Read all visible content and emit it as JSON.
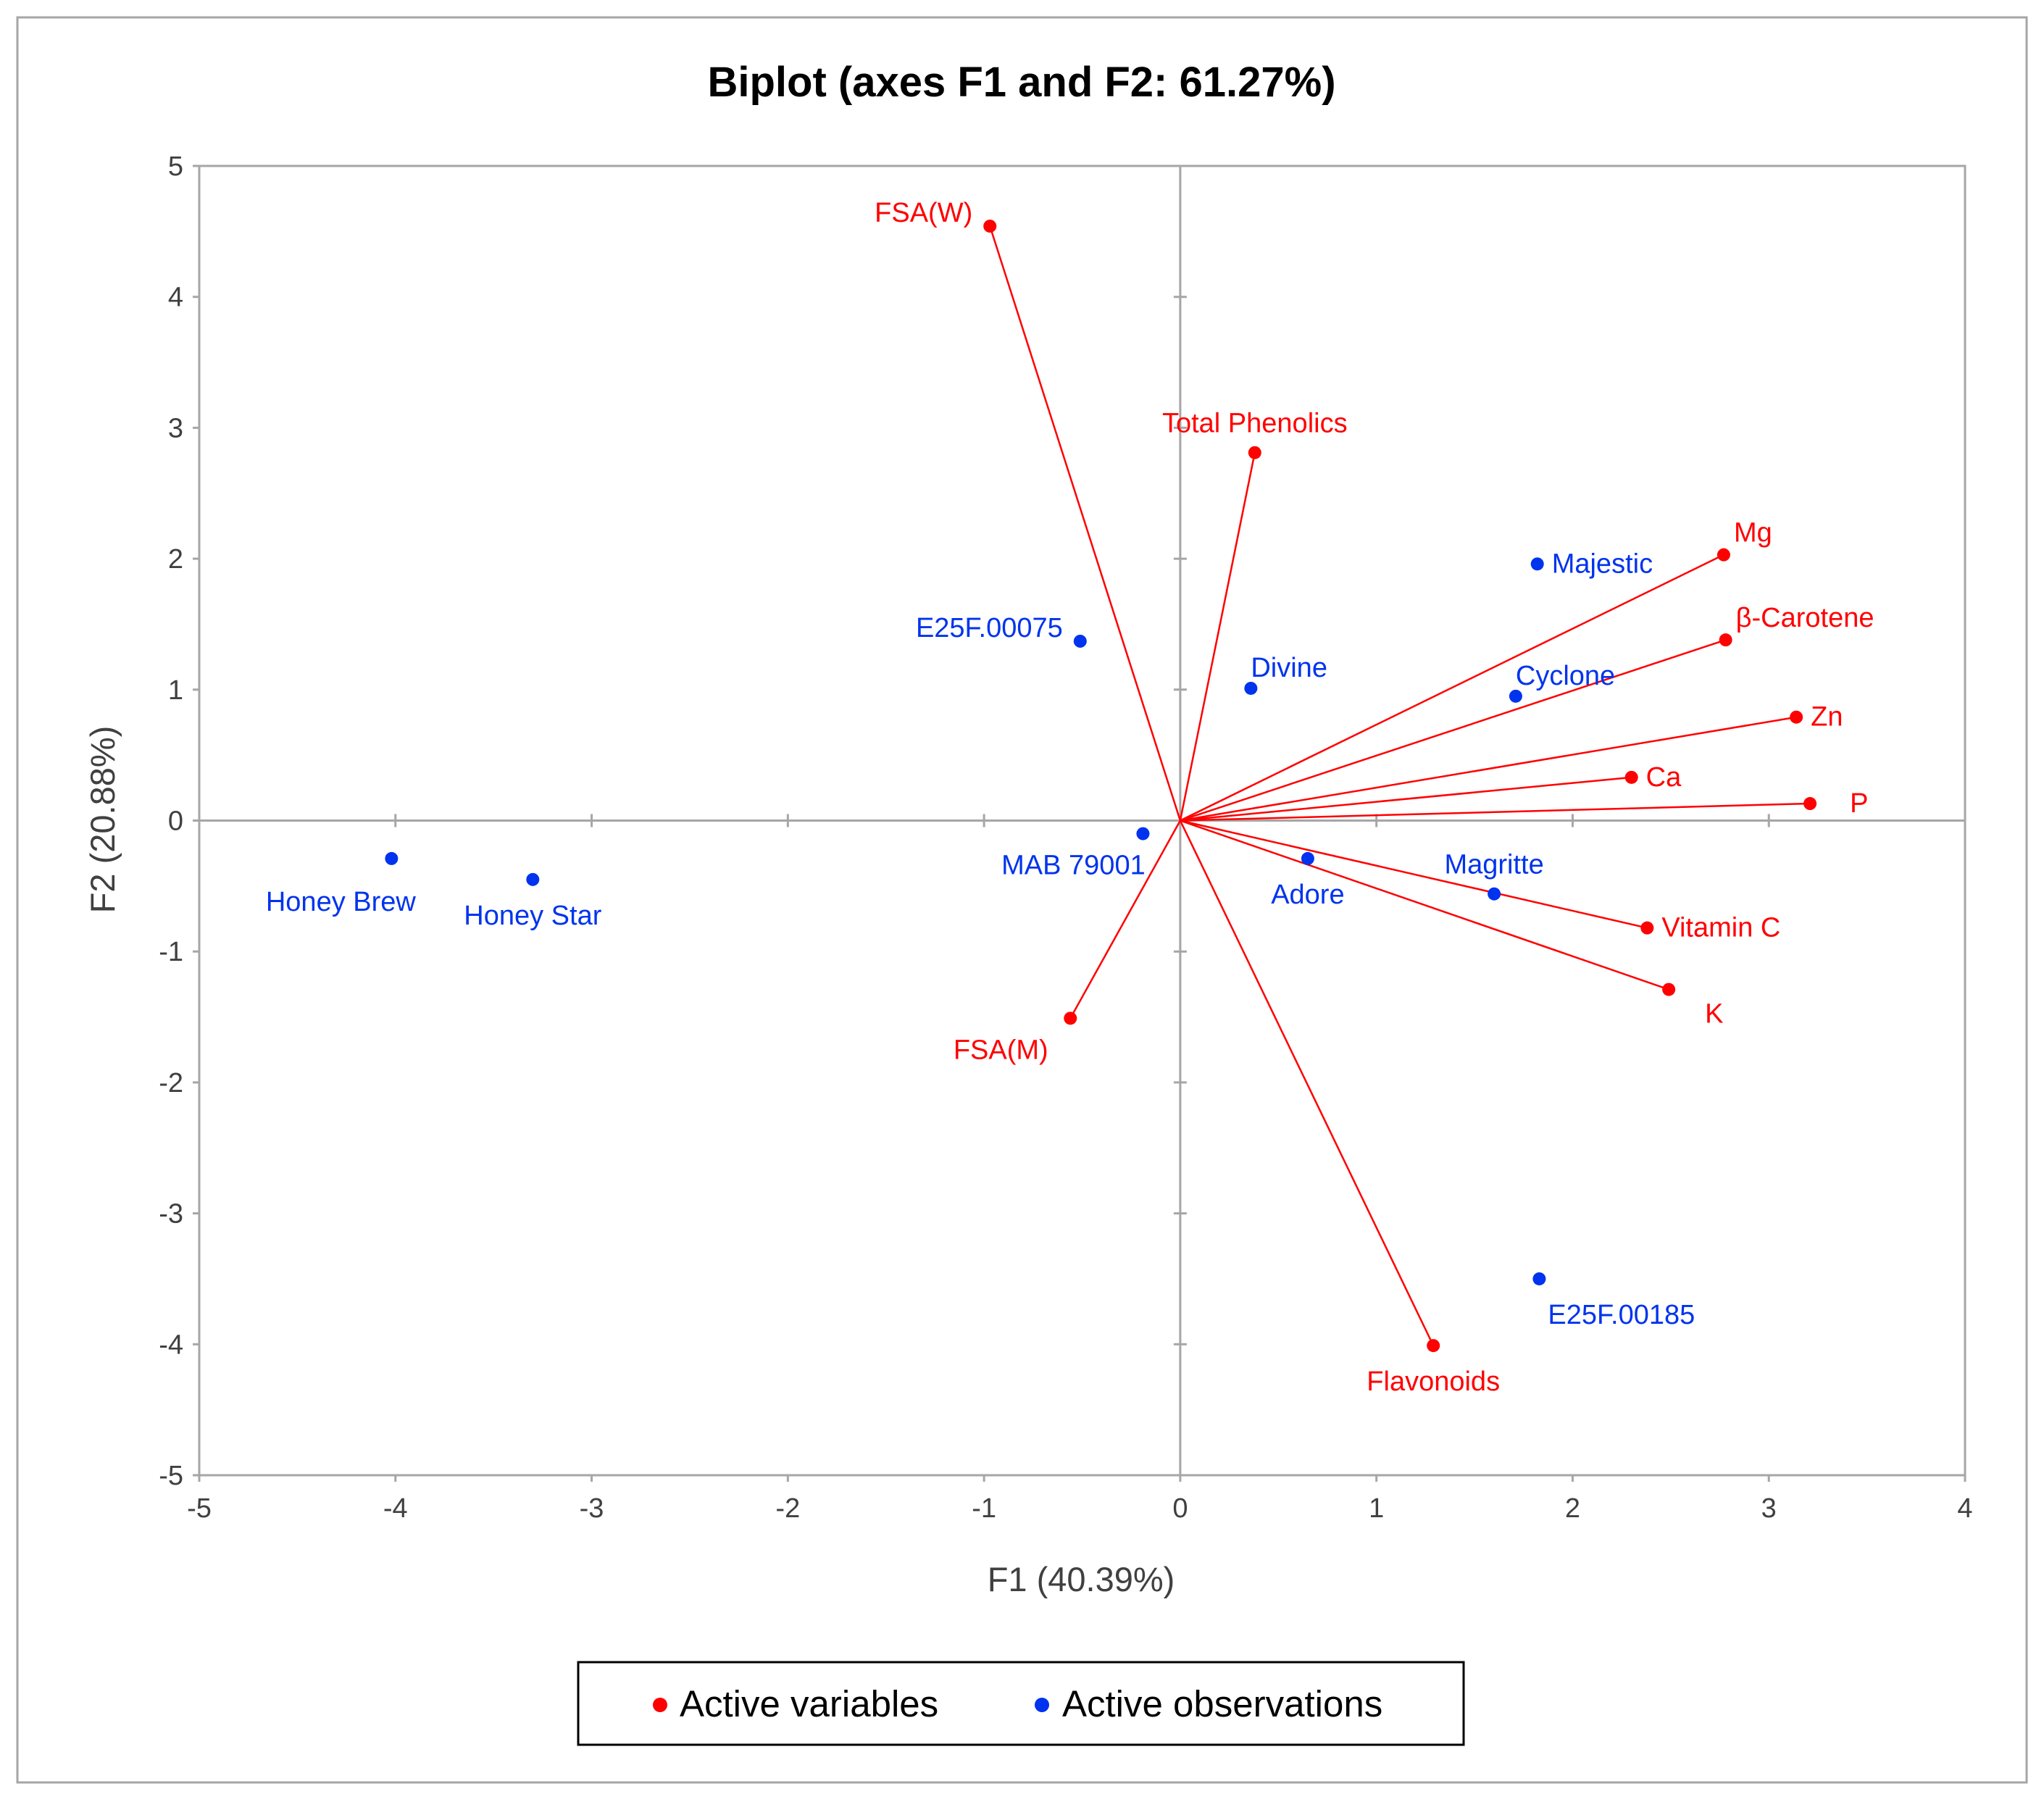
{
  "colors": {
    "variable": "#ff0000",
    "observation": "#0033ee",
    "axis": "#a6a6a6",
    "frame": "#a6a6a6",
    "text": "#000000",
    "tick_text": "#404040"
  },
  "chart_data": {
    "type": "scatter",
    "subtype": "pca-biplot",
    "title": "Biplot (axes F1 and F2: 61.27%)",
    "xlabel": "F1 (40.39%)",
    "ylabel": "F2 (20.88%)",
    "xlim": [
      -5,
      4
    ],
    "ylim": [
      -5,
      5
    ],
    "x_ticks": [
      -5,
      -4,
      -3,
      -2,
      -1,
      0,
      1,
      2,
      3,
      4
    ],
    "y_ticks": [
      -5,
      -4,
      -3,
      -2,
      -1,
      0,
      1,
      2,
      3,
      4,
      5
    ],
    "grid": false,
    "legend": {
      "position": "bottom-center",
      "entries": [
        {
          "label": "Active variables",
          "series": "variables"
        },
        {
          "label": "Active observations",
          "series": "observations"
        }
      ]
    },
    "series": [
      {
        "name": "variables",
        "label": "Active variables",
        "vectors_from_origin": true,
        "points": [
          {
            "label": "FSA(W)",
            "x": -0.97,
            "y": 4.54,
            "label_pos": "left"
          },
          {
            "label": "Total Phenolics",
            "x": 0.38,
            "y": 2.81,
            "label_pos": "above"
          },
          {
            "label": "Mg",
            "x": 2.77,
            "y": 2.03,
            "label_pos": "upper-right"
          },
          {
            "label": "β-Carotene",
            "x": 2.78,
            "y": 1.38,
            "label_pos": "upper-right"
          },
          {
            "label": "Zn",
            "x": 3.14,
            "y": 0.79,
            "label_pos": "right"
          },
          {
            "label": "Ca",
            "x": 2.3,
            "y": 0.33,
            "label_pos": "right"
          },
          {
            "label": "P",
            "x": 3.21,
            "y": 0.13,
            "label_pos": "right-far"
          },
          {
            "label": "Vitamin C",
            "x": 2.38,
            "y": -0.82,
            "label_pos": "right"
          },
          {
            "label": "K",
            "x": 2.49,
            "y": -1.29,
            "label_pos": "lower-right"
          },
          {
            "label": "FSA(M)",
            "x": -0.56,
            "y": -1.51,
            "label_pos": "lower-left"
          },
          {
            "label": "Flavonoids",
            "x": 1.29,
            "y": -4.01,
            "label_pos": "below"
          }
        ]
      },
      {
        "name": "observations",
        "label": "Active observations",
        "vectors_from_origin": false,
        "points": [
          {
            "label": "Majestic",
            "x": 1.82,
            "y": 1.96,
            "label_pos": "right"
          },
          {
            "label": "E25F.00075",
            "x": -0.51,
            "y": 1.37,
            "label_pos": "left"
          },
          {
            "label": "Divine",
            "x": 0.36,
            "y": 1.01,
            "label_pos": "above-right"
          },
          {
            "label": "Cyclone",
            "x": 1.71,
            "y": 0.95,
            "label_pos": "above-right"
          },
          {
            "label": "MAB 79001",
            "x": -0.19,
            "y": -0.1,
            "label_pos": "lower-left"
          },
          {
            "label": "Adore",
            "x": 0.65,
            "y": -0.29,
            "label_pos": "below"
          },
          {
            "label": "Magritte",
            "x": 1.6,
            "y": -0.56,
            "label_pos": "above"
          },
          {
            "label": "Honey Brew",
            "x": -4.02,
            "y": -0.29,
            "label_pos": "below-left"
          },
          {
            "label": "Honey Star",
            "x": -3.3,
            "y": -0.45,
            "label_pos": "below"
          },
          {
            "label": "E25F.00185",
            "x": 1.83,
            "y": -3.5,
            "label_pos": "below-right"
          }
        ]
      }
    ]
  }
}
